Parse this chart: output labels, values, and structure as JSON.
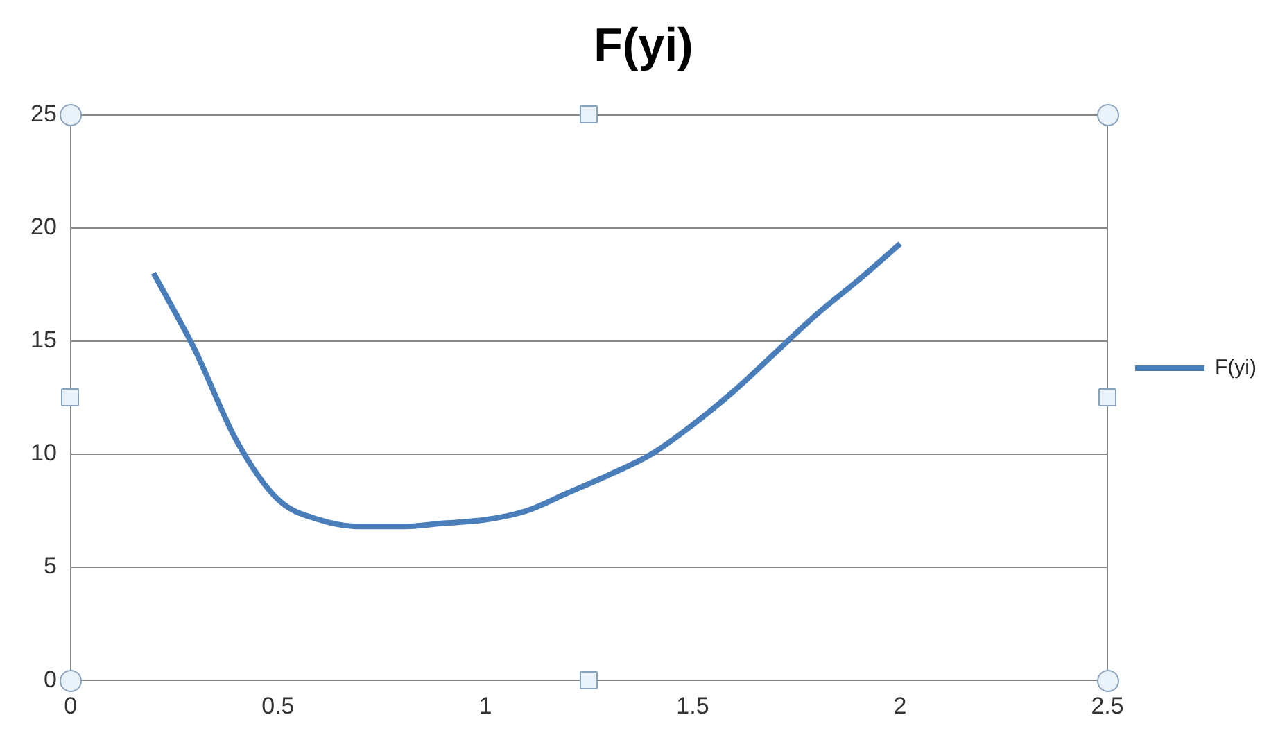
{
  "chart_data": {
    "type": "line",
    "title": "F(yi)",
    "x": [
      0.2,
      0.3,
      0.4,
      0.5,
      0.6,
      0.7,
      0.8,
      0.9,
      1.0,
      1.1,
      1.2,
      1.3,
      1.4,
      1.5,
      1.6,
      1.7,
      1.8,
      1.9,
      2.0
    ],
    "series": [
      {
        "name": "F(yi)",
        "color": "#4a7ebb",
        "values": [
          18.0,
          14.6,
          10.6,
          8.0,
          7.1,
          6.8,
          6.8,
          6.95,
          7.1,
          7.5,
          8.3,
          9.1,
          10.0,
          11.3,
          12.8,
          14.5,
          16.2,
          17.7,
          19.3
        ]
      }
    ],
    "xlim": [
      0,
      2.5
    ],
    "xticks": [
      0,
      0.5,
      1,
      1.5,
      2,
      2.5
    ],
    "ylim": [
      0,
      25
    ],
    "yticks": [
      0,
      5,
      10,
      15,
      20,
      25
    ],
    "grid": "y",
    "legend": "right",
    "marker": "none",
    "line_style": "solid"
  }
}
